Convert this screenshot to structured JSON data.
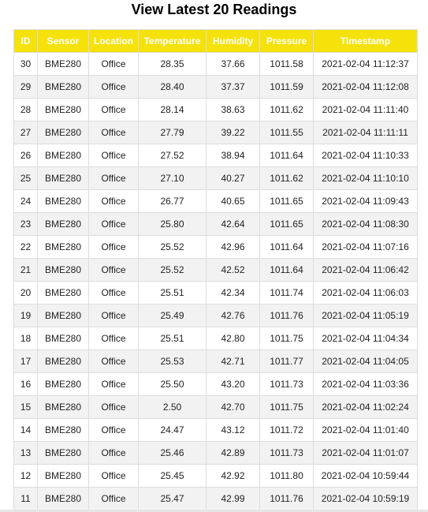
{
  "page": {
    "title": "View Latest 20 Readings"
  },
  "table": {
    "headers": [
      "ID",
      "Sensor",
      "Location",
      "Temperature",
      "Humidity",
      "Pressure",
      "Timestamp"
    ],
    "rows": [
      [
        "30",
        "BME280",
        "Office",
        "28.35",
        "37.66",
        "1011.58",
        "2021-02-04 11:12:37"
      ],
      [
        "29",
        "BME280",
        "Office",
        "28.40",
        "37.37",
        "1011.59",
        "2021-02-04 11:12:08"
      ],
      [
        "28",
        "BME280",
        "Office",
        "28.14",
        "38.63",
        "1011.62",
        "2021-02-04 11:11:40"
      ],
      [
        "27",
        "BME280",
        "Office",
        "27.79",
        "39.22",
        "1011.55",
        "2021-02-04 11:11:11"
      ],
      [
        "26",
        "BME280",
        "Office",
        "27.52",
        "38.94",
        "1011.64",
        "2021-02-04 11:10:33"
      ],
      [
        "25",
        "BME280",
        "Office",
        "27.10",
        "40.27",
        "1011.62",
        "2021-02-04 11:10:10"
      ],
      [
        "24",
        "BME280",
        "Office",
        "26.77",
        "40.65",
        "1011.65",
        "2021-02-04 11:09:43"
      ],
      [
        "23",
        "BME280",
        "Office",
        "25.80",
        "42.64",
        "1011.65",
        "2021-02-04 11:08:30"
      ],
      [
        "22",
        "BME280",
        "Office",
        "25.52",
        "42.96",
        "1011.64",
        "2021-02-04 11:07:16"
      ],
      [
        "21",
        "BME280",
        "Office",
        "25.52",
        "42.52",
        "1011.64",
        "2021-02-04 11:06:42"
      ],
      [
        "20",
        "BME280",
        "Office",
        "25.51",
        "42.34",
        "1011.74",
        "2021-02-04 11:06:03"
      ],
      [
        "19",
        "BME280",
        "Office",
        "25.49",
        "42.76",
        "1011.76",
        "2021-02-04 11:05:19"
      ],
      [
        "18",
        "BME280",
        "Office",
        "25.51",
        "42.80",
        "1011.75",
        "2021-02-04 11:04:34"
      ],
      [
        "17",
        "BME280",
        "Office",
        "25.53",
        "42.71",
        "1011.77",
        "2021-02-04 11:04:05"
      ],
      [
        "16",
        "BME280",
        "Office",
        "25.50",
        "43.20",
        "1011.73",
        "2021-02-04 11:03:36"
      ],
      [
        "15",
        "BME280",
        "Office",
        "2.50",
        "42.70",
        "1011.75",
        "2021-02-04 11:02:24"
      ],
      [
        "14",
        "BME280",
        "Office",
        "24.47",
        "43.12",
        "1011.72",
        "2021-02-04 11:01:40"
      ],
      [
        "13",
        "BME280",
        "Office",
        "25.46",
        "42.89",
        "1011.73",
        "2021-02-04 11:01:07"
      ],
      [
        "12",
        "BME280",
        "Office",
        "25.45",
        "42.92",
        "1011.80",
        "2021-02-04 10:59:44"
      ],
      [
        "11",
        "BME280",
        "Office",
        "25.47",
        "42.99",
        "1011.76",
        "2021-02-04 10:59:19"
      ]
    ]
  },
  "colors": {
    "header_bg": "#f5e20a",
    "header_text": "#ffffff",
    "row_alt_bg": "#f2f2f2",
    "border": "#dddddd"
  }
}
